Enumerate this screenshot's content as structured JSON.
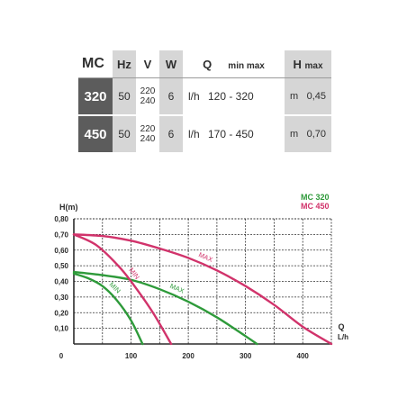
{
  "table": {
    "headers": {
      "mc": "MC",
      "hz": "Hz",
      "v": "V",
      "w": "W",
      "q": "Q",
      "q_range": "min  max",
      "h": "H",
      "h_sub": "max"
    },
    "rows": [
      {
        "model": "320",
        "hz": "50",
        "v1": "220",
        "v2": "240",
        "w": "6",
        "q_unit": "l/h",
        "q_range": "120 - 320",
        "h_unit": "m",
        "h_max": "0,45"
      },
      {
        "model": "450",
        "hz": "50",
        "v1": "220",
        "v2": "240",
        "w": "6",
        "q_unit": "l/h",
        "q_range": "170 - 450",
        "h_unit": "m",
        "h_max": "0,70"
      }
    ]
  },
  "colors": {
    "mc320": "#2e9a3a",
    "mc450": "#d1336b",
    "grid": "#2b2b2b"
  },
  "chart_data": {
    "type": "line",
    "ylabel": "H(m)",
    "xlabel": "Q",
    "xlabel_unit": "L/h",
    "xlim": [
      0,
      450
    ],
    "ylim": [
      0,
      0.8
    ],
    "x_ticks": [
      "0",
      "100",
      "200",
      "300",
      "400"
    ],
    "y_ticks": [
      "0,10",
      "0,20",
      "0,30",
      "0,40",
      "0,50",
      "0,60",
      "0,70",
      "0,80"
    ],
    "grid": true,
    "legend": [
      {
        "label": "MC 320",
        "color": "#2e9a3a"
      },
      {
        "label": "MC 450",
        "color": "#d1336b"
      }
    ],
    "series": [
      {
        "name": "MC 320",
        "curve_label": "MAX",
        "color": "#2e9a3a",
        "x": [
          0,
          50,
          100,
          150,
          200,
          250,
          300,
          320
        ],
        "y": [
          0.46,
          0.44,
          0.41,
          0.35,
          0.27,
          0.17,
          0.05,
          0
        ]
      },
      {
        "name": "MC 320",
        "curve_label": "MIN",
        "color": "#2e9a3a",
        "x": [
          0,
          25,
          50,
          75,
          100,
          120
        ],
        "y": [
          0.45,
          0.42,
          0.37,
          0.28,
          0.15,
          0
        ]
      },
      {
        "name": "MC 450",
        "curve_label": "MAX",
        "color": "#d1336b",
        "x": [
          0,
          50,
          100,
          150,
          200,
          250,
          300,
          350,
          400,
          450
        ],
        "y": [
          0.7,
          0.69,
          0.66,
          0.61,
          0.55,
          0.47,
          0.37,
          0.25,
          0.11,
          0
        ]
      },
      {
        "name": "MC 450",
        "curve_label": "MIN",
        "color": "#d1336b",
        "x": [
          0,
          40,
          80,
          110,
          140,
          170
        ],
        "y": [
          0.7,
          0.63,
          0.49,
          0.35,
          0.19,
          0
        ]
      }
    ]
  }
}
